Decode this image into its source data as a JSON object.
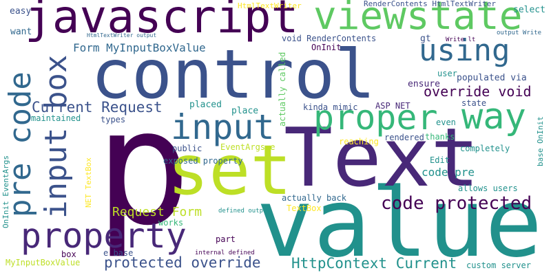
{
  "palette": {
    "background": "#ffffff",
    "dark_purple": "#440154",
    "indigo": "#3b528b",
    "slate_blue": "#31688e",
    "teal": "#21918c",
    "sea_green": "#35b779",
    "green": "#5ec962",
    "lime": "#bddf26",
    "yellow": "#fde725",
    "violet": "#482878"
  },
  "words": {
    "p": "p",
    "value": "value",
    "Text": "Text",
    "control": "control",
    "set": "set",
    "javascript": "javascript",
    "viewstate": "viewstate",
    "using": "using",
    "proper": "proper",
    "way": "way",
    "input": "input",
    "pre_code": "pre code",
    "input_box": "input box",
    "property": "property",
    "code_protected": "code protected",
    "Current_Request": "Current Request",
    "Form_MyInputBoxValue": "Form MyInputBoxValue",
    "override_void": "override void",
    "protected_override": "protected override",
    "HttpContext_Current": "HttpContext Current",
    "Request_Form": "Request Form",
    "easy": "easy",
    "want": "want",
    "HtmlTextWriter": "HtmlTextWriter",
    "HtmlTextWriter_output": "HtmlTextWriter output",
    "RenderContents_HtmlTextWriter": "RenderContents HtmlTextWriter",
    "select": "select",
    "output_Write": "output Write",
    "Write_lt": "Write lt",
    "gt": "gt",
    "void_RenderContents": "void RenderContents",
    "OnInit": "OnInit",
    "actually_called": "actually called",
    "user": "user",
    "ensure": "ensure",
    "populated_via": "populated via",
    "placed": "placed",
    "place": "place",
    "kinda_mimic": "kinda mimic",
    "ASP_NET": "ASP NET",
    "state": "state",
    "maintained": "maintained",
    "types": "types",
    "even": "even",
    "base_OnInit": "base OnInit",
    "thanks": "thanks",
    "reaching": "reaching",
    "rendered": "rendered",
    "public": "public",
    "EventArgs_e": "EventArgs e",
    "completely": "completely",
    "OnInit_EventArgs": "OnInit EventArgs",
    "exposed_property": "exposed property",
    "Edit": "Edit",
    "code_pre": "code pre",
    "NET_TextBox": "NET TextBox",
    "allows_users": "allows users",
    "actually_back": "actually back",
    "TextBox": "TextBox",
    "works": "works",
    "defined_output": "defined output",
    "part": "part",
    "internal_defined": "internal defined",
    "box": "box",
    "e_base": "e base",
    "MyInputBoxValue": "MyInputBoxValue",
    "custom_server": "custom server"
  }
}
